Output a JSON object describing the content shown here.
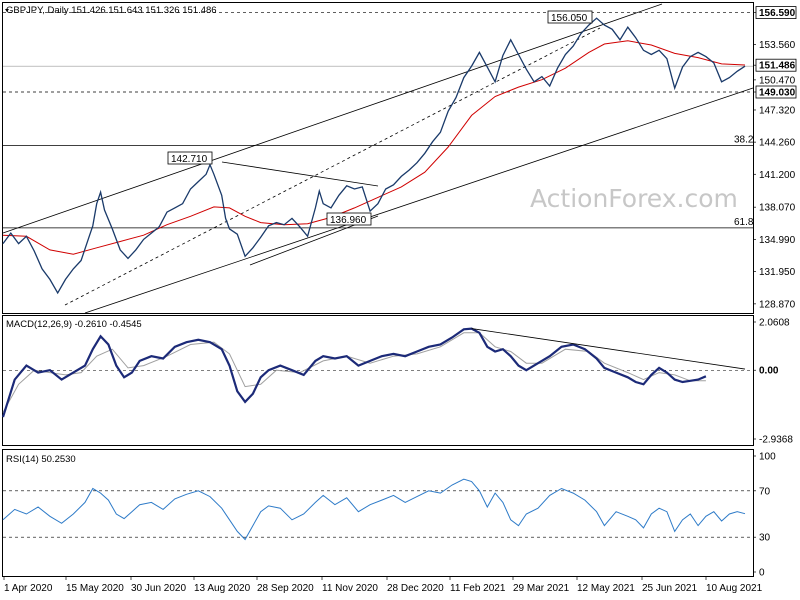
{
  "watermark": "ActionForex.com",
  "chart_data": [
    {
      "type": "line",
      "title": "GBPJPY, Daily  151.426 151.643 151.326 151.486",
      "symbol": "GBPJPY",
      "timeframe": "Daily",
      "ohlc_last": {
        "open": 151.426,
        "high": 151.643,
        "low": 151.326,
        "close": 151.486
      },
      "ylim": [
        128.0,
        157.5
      ],
      "y_ticks": [
        "156.590",
        "153.560",
        "151.486",
        "150.470",
        "149.030",
        "147.320",
        "144.260",
        "141.200",
        "138.070",
        "134.990",
        "131.950",
        "128.870"
      ],
      "x_ticks": [
        "1 Apr 2020",
        "15 May 2020",
        "30 Jun 2020",
        "13 Aug 2020",
        "28 Sep 2020",
        "11 Nov 2020",
        "28 Dec 2020",
        "11 Feb 2021",
        "29 Mar 2021",
        "12 May 2021",
        "25 Jun 2021",
        "10 Aug 2021"
      ],
      "price_path": [
        [
          0,
          134.6
        ],
        [
          2,
          135.6
        ],
        [
          4,
          134.6
        ],
        [
          6,
          135.3
        ],
        [
          8,
          133.9
        ],
        [
          10,
          132.2
        ],
        [
          12,
          131.2
        ],
        [
          14,
          129.9
        ],
        [
          16,
          131.2
        ],
        [
          18,
          132.2
        ],
        [
          20,
          133.0
        ],
        [
          22,
          135.2
        ],
        [
          23,
          136.3
        ],
        [
          24,
          138.4
        ],
        [
          25,
          139.5
        ],
        [
          26,
          137.8
        ],
        [
          28,
          136.0
        ],
        [
          30,
          134.0
        ],
        [
          32,
          133.2
        ],
        [
          34,
          134.0
        ],
        [
          36,
          135.0
        ],
        [
          38,
          135.6
        ],
        [
          40,
          136.2
        ],
        [
          42,
          137.6
        ],
        [
          44,
          138.0
        ],
        [
          46,
          138.4
        ],
        [
          48,
          139.8
        ],
        [
          50,
          140.5
        ],
        [
          52,
          141.2
        ],
        [
          53,
          142.1
        ],
        [
          54,
          141.2
        ],
        [
          56,
          139.2
        ],
        [
          57,
          137.0
        ],
        [
          58,
          136.0
        ],
        [
          60,
          135.5
        ],
        [
          62,
          133.4
        ],
        [
          64,
          134.2
        ],
        [
          66,
          135.2
        ],
        [
          68,
          136.3
        ],
        [
          70,
          136.6
        ],
        [
          72,
          136.4
        ],
        [
          74,
          137.0
        ],
        [
          76,
          136.2
        ],
        [
          78,
          135.3
        ],
        [
          80,
          138.0
        ],
        [
          81,
          139.6
        ],
        [
          82,
          138.4
        ],
        [
          84,
          138.0
        ],
        [
          86,
          139.2
        ],
        [
          88,
          140.1
        ],
        [
          90,
          139.8
        ],
        [
          92,
          140.0
        ],
        [
          94,
          137.7
        ],
        [
          96,
          138.4
        ],
        [
          98,
          139.8
        ],
        [
          100,
          140.2
        ],
        [
          102,
          141.0
        ],
        [
          104,
          141.6
        ],
        [
          106,
          142.3
        ],
        [
          108,
          143.2
        ],
        [
          110,
          144.3
        ],
        [
          112,
          145.2
        ],
        [
          114,
          147.2
        ],
        [
          116,
          148.5
        ],
        [
          118,
          150.4
        ],
        [
          120,
          151.5
        ],
        [
          122,
          152.8
        ],
        [
          124,
          151.4
        ],
        [
          126,
          150.0
        ],
        [
          128,
          152.5
        ],
        [
          130,
          154.0
        ],
        [
          132,
          152.6
        ],
        [
          134,
          151.2
        ],
        [
          136,
          150.0
        ],
        [
          138,
          150.5
        ],
        [
          140,
          149.6
        ],
        [
          142,
          151.3
        ],
        [
          144,
          152.6
        ],
        [
          146,
          153.4
        ],
        [
          148,
          154.6
        ],
        [
          150,
          155.4
        ],
        [
          152,
          156.05
        ],
        [
          154,
          155.4
        ],
        [
          156,
          155.0
        ],
        [
          158,
          154.0
        ],
        [
          160,
          155.2
        ],
        [
          162,
          154.2
        ],
        [
          164,
          153.0
        ],
        [
          166,
          152.6
        ],
        [
          168,
          153.0
        ],
        [
          170,
          152.2
        ],
        [
          172,
          149.4
        ],
        [
          174,
          151.4
        ],
        [
          176,
          152.4
        ],
        [
          178,
          152.8
        ],
        [
          180,
          152.4
        ],
        [
          182,
          151.8
        ],
        [
          184,
          150.0
        ],
        [
          186,
          150.4
        ],
        [
          188,
          151.0
        ],
        [
          190,
          151.486
        ]
      ],
      "ma_line": [
        [
          0,
          135.4
        ],
        [
          6,
          135.3
        ],
        [
          12,
          134.0
        ],
        [
          18,
          133.6
        ],
        [
          24,
          134.2
        ],
        [
          30,
          134.8
        ],
        [
          36,
          135.4
        ],
        [
          42,
          136.4
        ],
        [
          48,
          137.2
        ],
        [
          54,
          138.1
        ],
        [
          58,
          138.0
        ],
        [
          62,
          137.2
        ],
        [
          66,
          136.6
        ],
        [
          72,
          136.4
        ],
        [
          78,
          136.5
        ],
        [
          84,
          137.1
        ],
        [
          90,
          138.0
        ],
        [
          96,
          139.0
        ],
        [
          102,
          140.0
        ],
        [
          108,
          141.4
        ],
        [
          114,
          143.8
        ],
        [
          120,
          146.8
        ],
        [
          126,
          148.6
        ],
        [
          132,
          149.5
        ],
        [
          138,
          150.2
        ],
        [
          144,
          151.3
        ],
        [
          150,
          152.8
        ],
        [
          154,
          153.6
        ],
        [
          160,
          153.9
        ],
        [
          166,
          153.5
        ],
        [
          172,
          152.7
        ],
        [
          178,
          152.3
        ],
        [
          184,
          151.7
        ],
        [
          190,
          151.6
        ]
      ],
      "levels": [
        {
          "label": "156.590",
          "value": 156.59,
          "style": "dashed"
        },
        {
          "label": "149.030",
          "value": 149.03,
          "style": "dashed"
        },
        {
          "label": "151.486",
          "value": 151.486,
          "style": "solid"
        },
        {
          "label": "38.2",
          "value": 143.95,
          "style": "solid"
        },
        {
          "label": "61.8",
          "value": 136.1,
          "style": "solid"
        }
      ],
      "annotations": [
        {
          "label": "156.050",
          "value": 156.05
        },
        {
          "label": "142.710",
          "value": 142.71
        },
        {
          "label": "136.960",
          "value": 136.96
        }
      ]
    },
    {
      "type": "line",
      "title": "MACD(12,26,9) -0.2610 -0.4545",
      "name": "MACD(12,26,9)",
      "values_last": [
        -0.261,
        -0.4545
      ],
      "ylim": [
        -2.9368,
        2.0608
      ],
      "y_ticks": [
        "2.0608",
        "0.00",
        "-2.9368"
      ],
      "macd_path": [
        [
          0,
          -2.0
        ],
        [
          3,
          -0.4
        ],
        [
          6,
          0.2
        ],
        [
          9,
          -0.1
        ],
        [
          12,
          0.0
        ],
        [
          15,
          -0.4
        ],
        [
          18,
          -0.1
        ],
        [
          21,
          0.2
        ],
        [
          23,
          0.9
        ],
        [
          25,
          1.45
        ],
        [
          27,
          1.1
        ],
        [
          29,
          0.2
        ],
        [
          31,
          -0.3
        ],
        [
          33,
          -0.1
        ],
        [
          35,
          0.4
        ],
        [
          38,
          0.6
        ],
        [
          41,
          0.5
        ],
        [
          44,
          1.0
        ],
        [
          47,
          1.2
        ],
        [
          50,
          1.3
        ],
        [
          53,
          1.2
        ],
        [
          56,
          0.9
        ],
        [
          58,
          0.2
        ],
        [
          60,
          -0.9
        ],
        [
          62,
          -1.35
        ],
        [
          64,
          -1.0
        ],
        [
          66,
          -0.3
        ],
        [
          68,
          0.0
        ],
        [
          71,
          0.2
        ],
        [
          74,
          0.0
        ],
        [
          77,
          -0.2
        ],
        [
          80,
          0.4
        ],
        [
          82,
          0.6
        ],
        [
          85,
          0.5
        ],
        [
          88,
          0.6
        ],
        [
          91,
          0.2
        ],
        [
          94,
          0.4
        ],
        [
          97,
          0.6
        ],
        [
          100,
          0.7
        ],
        [
          103,
          0.6
        ],
        [
          106,
          0.8
        ],
        [
          109,
          1.0
        ],
        [
          112,
          1.1
        ],
        [
          115,
          1.4
        ],
        [
          118,
          1.75
        ],
        [
          120,
          1.78
        ],
        [
          122,
          1.6
        ],
        [
          124,
          1.0
        ],
        [
          126,
          0.8
        ],
        [
          128,
          0.9
        ],
        [
          130,
          0.6
        ],
        [
          132,
          0.2
        ],
        [
          134,
          0.0
        ],
        [
          137,
          0.3
        ],
        [
          140,
          0.6
        ],
        [
          143,
          1.0
        ],
        [
          146,
          1.1
        ],
        [
          149,
          0.9
        ],
        [
          152,
          0.5
        ],
        [
          154,
          0.1
        ],
        [
          157,
          -0.1
        ],
        [
          160,
          -0.3
        ],
        [
          162,
          -0.5
        ],
        [
          164,
          -0.6
        ],
        [
          166,
          -0.2
        ],
        [
          168,
          0.1
        ],
        [
          170,
          -0.1
        ],
        [
          172,
          -0.4
        ],
        [
          174,
          -0.5
        ],
        [
          176,
          -0.45
        ],
        [
          178,
          -0.4
        ],
        [
          180,
          -0.26
        ]
      ],
      "signal_path": [
        [
          0,
          -1.8
        ],
        [
          4,
          -0.6
        ],
        [
          8,
          0.0
        ],
        [
          12,
          -0.1
        ],
        [
          16,
          -0.2
        ],
        [
          20,
          -0.1
        ],
        [
          24,
          0.6
        ],
        [
          28,
          0.9
        ],
        [
          32,
          0.1
        ],
        [
          36,
          0.2
        ],
        [
          42,
          0.6
        ],
        [
          48,
          1.1
        ],
        [
          54,
          1.2
        ],
        [
          58,
          0.7
        ],
        [
          62,
          -0.7
        ],
        [
          66,
          -0.6
        ],
        [
          70,
          0.0
        ],
        [
          76,
          -0.1
        ],
        [
          82,
          0.4
        ],
        [
          88,
          0.6
        ],
        [
          94,
          0.3
        ],
        [
          100,
          0.6
        ],
        [
          106,
          0.7
        ],
        [
          112,
          1.0
        ],
        [
          118,
          1.6
        ],
        [
          122,
          1.6
        ],
        [
          126,
          1.0
        ],
        [
          130,
          0.8
        ],
        [
          134,
          0.3
        ],
        [
          138,
          0.3
        ],
        [
          144,
          0.9
        ],
        [
          150,
          0.8
        ],
        [
          154,
          0.3
        ],
        [
          160,
          -0.1
        ],
        [
          164,
          -0.4
        ],
        [
          168,
          -0.1
        ],
        [
          172,
          -0.2
        ],
        [
          176,
          -0.45
        ],
        [
          180,
          -0.45
        ]
      ],
      "trendline": [
        [
          120,
          1.78
        ],
        [
          190,
          0.05
        ]
      ]
    },
    {
      "type": "line",
      "title": "RSI(14) 50.2530",
      "name": "RSI(14)",
      "value_last": 50.253,
      "ylim": [
        0,
        100
      ],
      "y_ticks": [
        "100",
        "70",
        "30",
        "0"
      ],
      "rsi_path": [
        [
          0,
          45
        ],
        [
          3,
          54
        ],
        [
          6,
          50
        ],
        [
          9,
          56
        ],
        [
          12,
          48
        ],
        [
          15,
          42
        ],
        [
          18,
          50
        ],
        [
          21,
          60
        ],
        [
          23,
          72
        ],
        [
          25,
          68
        ],
        [
          27,
          62
        ],
        [
          29,
          50
        ],
        [
          31,
          46
        ],
        [
          33,
          52
        ],
        [
          35,
          58
        ],
        [
          38,
          60
        ],
        [
          41,
          54
        ],
        [
          44,
          63
        ],
        [
          47,
          67
        ],
        [
          50,
          70
        ],
        [
          53,
          65
        ],
        [
          56,
          55
        ],
        [
          58,
          45
        ],
        [
          60,
          35
        ],
        [
          62,
          28
        ],
        [
          64,
          40
        ],
        [
          66,
          52
        ],
        [
          68,
          57
        ],
        [
          71,
          55
        ],
        [
          74,
          45
        ],
        [
          77,
          50
        ],
        [
          80,
          60
        ],
        [
          82,
          66
        ],
        [
          85,
          58
        ],
        [
          88,
          64
        ],
        [
          91,
          52
        ],
        [
          94,
          58
        ],
        [
          97,
          62
        ],
        [
          100,
          66
        ],
        [
          103,
          60
        ],
        [
          106,
          65
        ],
        [
          109,
          70
        ],
        [
          112,
          68
        ],
        [
          115,
          75
        ],
        [
          118,
          80
        ],
        [
          120,
          78
        ],
        [
          122,
          70
        ],
        [
          124,
          56
        ],
        [
          126,
          68
        ],
        [
          128,
          60
        ],
        [
          130,
          45
        ],
        [
          132,
          40
        ],
        [
          134,
          50
        ],
        [
          137,
          55
        ],
        [
          140,
          66
        ],
        [
          143,
          72
        ],
        [
          146,
          68
        ],
        [
          149,
          62
        ],
        [
          152,
          52
        ],
        [
          154,
          40
        ],
        [
          157,
          52
        ],
        [
          160,
          48
        ],
        [
          162,
          45
        ],
        [
          164,
          38
        ],
        [
          166,
          50
        ],
        [
          168,
          55
        ],
        [
          170,
          52
        ],
        [
          172,
          35
        ],
        [
          174,
          45
        ],
        [
          176,
          50
        ],
        [
          178,
          40
        ],
        [
          180,
          48
        ],
        [
          182,
          52
        ],
        [
          184,
          44
        ],
        [
          186,
          50
        ],
        [
          188,
          52
        ],
        [
          190,
          50.25
        ]
      ]
    }
  ]
}
